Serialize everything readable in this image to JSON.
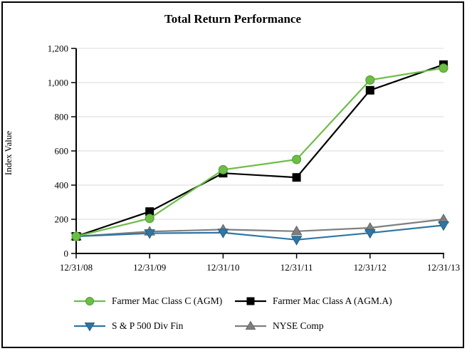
{
  "chart_data": {
    "type": "line",
    "title": "Total Return Performance",
    "xlabel": "",
    "ylabel": "Index Value",
    "categories": [
      "12/31/08",
      "12/31/09",
      "12/31/10",
      "12/31/11",
      "12/31/12",
      "12/31/13"
    ],
    "ylim": [
      0,
      1200
    ],
    "yticks": [
      0,
      200,
      400,
      600,
      800,
      1000,
      1200
    ],
    "ytick_labels": [
      "0",
      "200",
      "400",
      "600",
      "800",
      "1,000",
      "1,200"
    ],
    "grid": "horizontal-light",
    "legend_position": "bottom-two-columns",
    "series": [
      {
        "name": "Farmer Mac Class C (AGM)",
        "marker": "circle",
        "color": "#6CBE45",
        "edge": "#4F9A31",
        "values": [
          100,
          205,
          490,
          550,
          1015,
          1085
        ]
      },
      {
        "name": "Farmer Mac Class A (AGM.A)",
        "marker": "square",
        "color": "#000000",
        "edge": "#000000",
        "values": [
          100,
          245,
          470,
          445,
          955,
          1105
        ]
      },
      {
        "name": "S & P 500 Div Fin",
        "marker": "triangle-down",
        "color": "#2E76A4",
        "edge": "#245E83",
        "values": [
          100,
          118,
          122,
          80,
          120,
          165
        ]
      },
      {
        "name": "NYSE Comp",
        "marker": "triangle-up",
        "color": "#7F7F7F",
        "edge": "#666666",
        "values": [
          100,
          128,
          140,
          130,
          150,
          200
        ]
      }
    ],
    "colors": {
      "axis": "#000000",
      "gridline": "#D9D9D9",
      "background": "#FFFFFF"
    }
  }
}
